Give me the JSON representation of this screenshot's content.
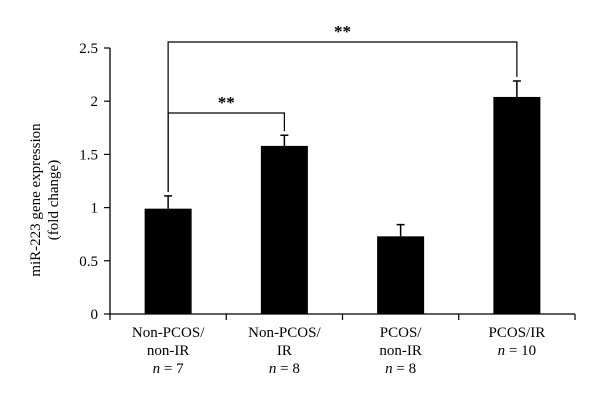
{
  "chart_data": {
    "type": "bar",
    "ylabel": [
      "miR-223 gene expression",
      "(fold change)"
    ],
    "ylim": [
      0,
      2.5
    ],
    "yticks": [
      "0",
      "0.5",
      "1",
      "1.5",
      "2",
      "2.5"
    ],
    "categories": [
      {
        "lines": [
          "Non-PCOS/",
          "non-IR"
        ],
        "n": "7"
      },
      {
        "lines": [
          "Non-PCOS/",
          "IR"
        ],
        "n": "8"
      },
      {
        "lines": [
          "PCOS/",
          "non-IR"
        ],
        "n": "8"
      },
      {
        "lines": [
          "PCOS/IR"
        ],
        "n": "10"
      }
    ],
    "n_symbol": "n",
    "n_equals": " = ",
    "values": [
      0.99,
      1.58,
      0.73,
      2.04
    ],
    "errors": [
      0.12,
      0.1,
      0.11,
      0.15
    ],
    "bar_color": "#000000",
    "grid": false,
    "significance": [
      {
        "from": 0,
        "to": 3,
        "label": "**"
      },
      {
        "from": 0,
        "to": 1,
        "label": "**"
      }
    ]
  }
}
